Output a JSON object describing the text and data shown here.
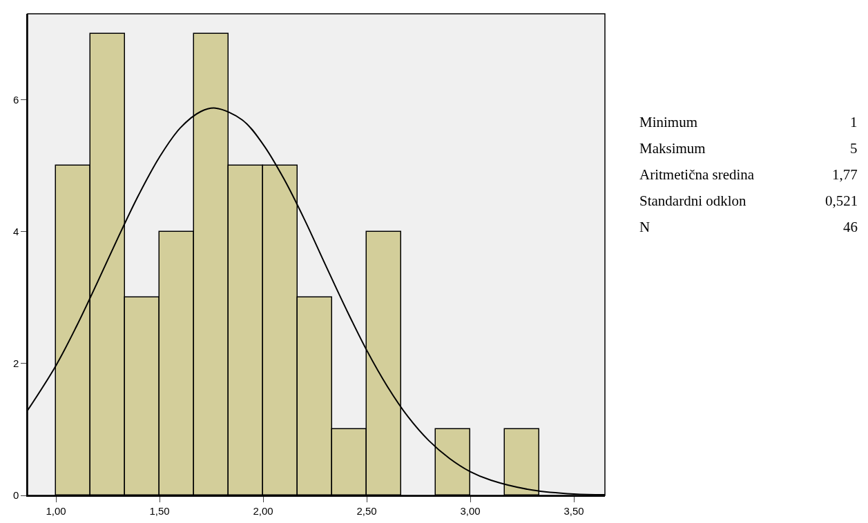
{
  "chart_data": {
    "type": "histogram",
    "bins": [
      1.0,
      1.167,
      1.333,
      1.5,
      1.667,
      1.833,
      2.0,
      2.167,
      2.333,
      2.5,
      2.667,
      2.833,
      3.0,
      3.167,
      3.333
    ],
    "values": [
      5,
      7,
      3,
      4,
      7,
      5,
      5,
      3,
      1,
      4,
      0,
      1,
      0,
      1
    ],
    "color": "#d3ce9a",
    "series": [
      {
        "type": "line",
        "color": "#000000",
        "x": [
          0.863,
          1.0,
          1.1,
          1.2,
          1.3,
          1.4,
          1.5,
          1.6,
          1.7,
          1.77,
          1.9,
          2.0,
          2.1,
          2.2,
          2.3,
          2.4,
          2.5,
          2.6,
          2.7,
          2.8,
          2.9,
          3.0,
          3.1,
          3.3,
          3.5,
          3.65
        ],
        "values": [
          1.29,
          1.97,
          2.57,
          3.23,
          3.91,
          4.56,
          5.13,
          5.57,
          5.82,
          5.87,
          5.69,
          5.32,
          4.8,
          4.18,
          3.5,
          2.83,
          2.2,
          1.65,
          1.19,
          0.83,
          0.56,
          0.36,
          0.23,
          0.08,
          0.02,
          0.01
        ]
      }
    ],
    "xlim": [
      0.863,
      3.65
    ],
    "xticks": [
      {
        "value": 1,
        "label": "1,00"
      },
      {
        "value": 1.5,
        "label": "1,50"
      },
      {
        "value": 2,
        "label": "2,00"
      },
      {
        "value": 2.5,
        "label": "2,50"
      },
      {
        "value": 3,
        "label": "3,00"
      },
      {
        "value": 3.5,
        "label": "3,50"
      }
    ],
    "ylim": [
      0,
      7.3
    ],
    "yticks": [
      0,
      2,
      4,
      6
    ],
    "grid": false,
    "annotations": [
      "Minimum",
      "1",
      "Maksimum",
      "5",
      "Aritmetična sredina",
      "1,77",
      "Standardni odklon",
      "0,521",
      "N",
      "46"
    ]
  }
}
